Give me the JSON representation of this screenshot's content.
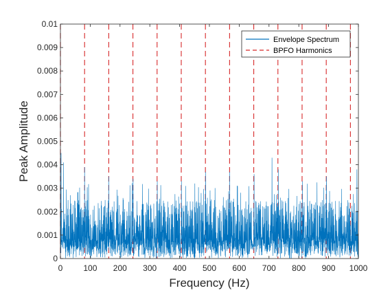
{
  "chart_data": {
    "type": "line",
    "title": "",
    "xlabel": "Frequency (Hz)",
    "ylabel": "Peak Amplitude",
    "xlim": [
      0,
      1000
    ],
    "ylim": [
      0,
      0.01
    ],
    "x_ticks": [
      0,
      100,
      200,
      300,
      400,
      500,
      600,
      700,
      800,
      900,
      1000
    ],
    "x_tick_labels": [
      "0",
      "100",
      "200",
      "300",
      "400",
      "500",
      "600",
      "700",
      "800",
      "900",
      "1000"
    ],
    "y_ticks": [
      0,
      0.001,
      0.002,
      0.003,
      0.004,
      0.005,
      0.006,
      0.007,
      0.008,
      0.009,
      0.01
    ],
    "y_tick_labels": [
      "0",
      "0.001",
      "0.002",
      "0.003",
      "0.004",
      "0.005",
      "0.006",
      "0.007",
      "0.008",
      "0.009",
      "0.01"
    ],
    "grid": false,
    "legend_position": "top-right",
    "series": [
      {
        "name": "Envelope Spectrum",
        "style": "solid",
        "color": "#0072BD",
        "x_range": [
          0,
          1000
        ],
        "typical_range": [
          0.0,
          0.0025
        ],
        "peaks": [
          {
            "x": 2,
            "y": 0.0045
          },
          {
            "x": 10,
            "y": 0.0041
          },
          {
            "x": 81,
            "y": 0.0039
          },
          {
            "x": 162,
            "y": 0.0035
          },
          {
            "x": 244,
            "y": 0.0034
          },
          {
            "x": 325,
            "y": 0.0033
          },
          {
            "x": 406,
            "y": 0.0033
          },
          {
            "x": 487,
            "y": 0.0037
          },
          {
            "x": 568,
            "y": 0.0037
          },
          {
            "x": 650,
            "y": 0.0036
          },
          {
            "x": 710,
            "y": 0.0043
          },
          {
            "x": 731,
            "y": 0.0038
          },
          {
            "x": 812,
            "y": 0.0033
          },
          {
            "x": 893,
            "y": 0.0035
          },
          {
            "x": 995,
            "y": 0.0038
          }
        ]
      },
      {
        "name": "BPFO Harmonics",
        "style": "dashed",
        "color": "#D62728",
        "x": [
          0,
          81.1,
          162.2,
          243.3,
          324.4,
          405.5,
          486.6,
          567.7,
          648.8,
          729.9,
          811.0,
          892.1,
          973.2
        ]
      }
    ]
  }
}
